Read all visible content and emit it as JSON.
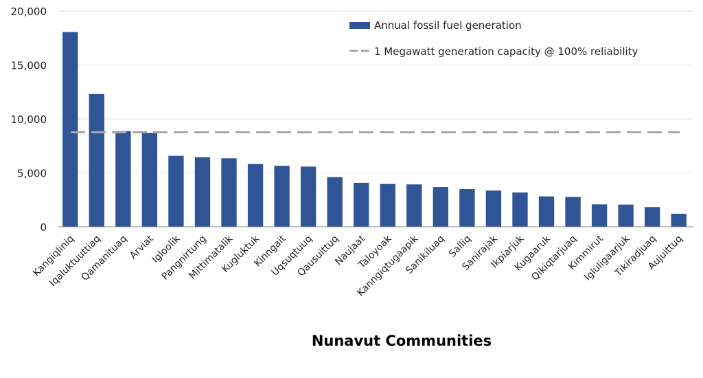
{
  "chart_data": {
    "type": "bar",
    "title": "",
    "xlabel": "Nunavut Communities",
    "ylabel": "",
    "ylim": [
      0,
      20000
    ],
    "yticks": [
      "0",
      "5,000",
      "10,000",
      "15,000",
      "20,000"
    ],
    "ytick_values": [
      0,
      5000,
      10000,
      15000,
      20000
    ],
    "grid": true,
    "legend_position": "top-right",
    "categories": [
      "Kangiqliniq",
      "Iqaluktuuttiaq",
      "Qamanituaq",
      "Arviat",
      "Igloolik",
      "Pangnirtung",
      "Mittimatalik",
      "Kugluktuk",
      "Kinngait",
      "Uqsuqtuuq",
      "Qausuittuq",
      "Naujaat",
      "Taloyoak",
      "Kanngiqtugaapik",
      "Sanikiluaq",
      "Salliq",
      "Sanirajak",
      "Ikpiarjuk",
      "Kugaaruk",
      "Qikiqtarjuaq",
      "Kimmirut",
      "Igluligaarjuk",
      "Tikiradjuaq",
      "Aujuittuq"
    ],
    "series": [
      {
        "name": "Annual fossil fuel generation",
        "type": "bar",
        "color": "#2f5597",
        "values": [
          18050,
          12300,
          8870,
          8700,
          6580,
          6450,
          6350,
          5820,
          5650,
          5580,
          4600,
          4080,
          3970,
          3930,
          3690,
          3500,
          3360,
          3180,
          2820,
          2760,
          2080,
          2060,
          1830,
          1210
        ]
      },
      {
        "name": "1 Megawatt generation capacity @ 100% reliability",
        "type": "line",
        "style": "dashed",
        "color": "#a6a6a6",
        "value": 8760
      }
    ]
  }
}
